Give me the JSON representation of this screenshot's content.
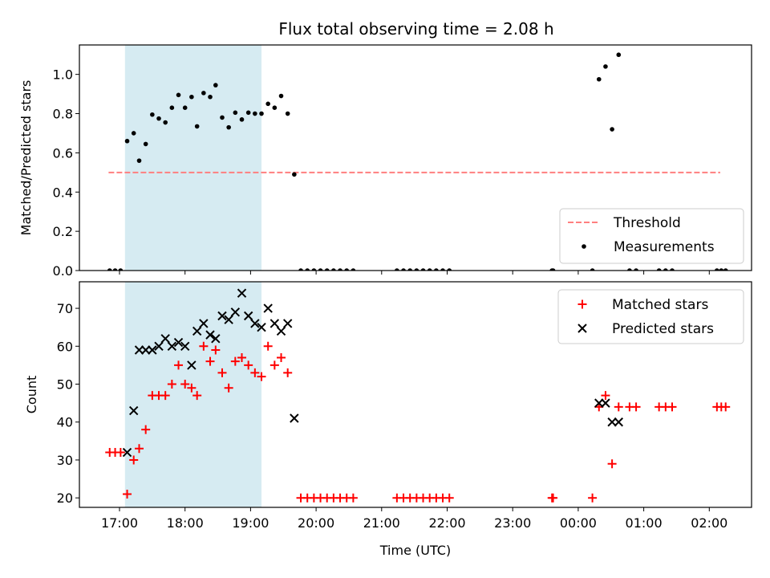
{
  "title": "Flux total observing time = 2.08 h",
  "chart_data": [
    {
      "type": "scatter",
      "ylabel": "Matched/Predicted stars",
      "ylim": [
        0,
        1.15
      ],
      "yticks": [
        "0.0",
        "0.2",
        "0.4",
        "0.6",
        "0.8",
        "1.0"
      ],
      "shaded_span": [
        "17:05",
        "19:10"
      ],
      "threshold": {
        "name": "Threshold",
        "value": 0.5,
        "color": "#ff7f7f",
        "x_range": [
          "16:50",
          "02:10"
        ]
      },
      "measurements": {
        "name": "Measurements",
        "color": "#000000",
        "points": [
          [
            "16:51",
            0
          ],
          [
            "16:56",
            0
          ],
          [
            "17:01",
            0
          ],
          [
            "17:07",
            0.66
          ],
          [
            "17:13",
            0.7
          ],
          [
            "17:18",
            0.56
          ],
          [
            "17:24",
            0.645
          ],
          [
            "17:30",
            0.795
          ],
          [
            "17:36",
            0.775
          ],
          [
            "17:42",
            0.755
          ],
          [
            "17:48",
            0.83
          ],
          [
            "17:54",
            0.895
          ],
          [
            "18:00",
            0.83
          ],
          [
            "18:06",
            0.885
          ],
          [
            "18:11",
            0.735
          ],
          [
            "18:17",
            0.905
          ],
          [
            "18:23",
            0.885
          ],
          [
            "18:28",
            0.945
          ],
          [
            "18:34",
            0.78
          ],
          [
            "18:40",
            0.73
          ],
          [
            "18:46",
            0.805
          ],
          [
            "18:52",
            0.77
          ],
          [
            "18:58",
            0.805
          ],
          [
            "19:04",
            0.8
          ],
          [
            "19:10",
            0.8
          ],
          [
            "19:16",
            0.85
          ],
          [
            "19:22",
            0.83
          ],
          [
            "19:28",
            0.89
          ],
          [
            "19:34",
            0.8
          ],
          [
            "19:40",
            0.49
          ],
          [
            "19:46",
            0
          ],
          [
            "19:52",
            0
          ],
          [
            "19:58",
            0
          ],
          [
            "20:04",
            0
          ],
          [
            "20:10",
            0
          ],
          [
            "20:16",
            0
          ],
          [
            "20:22",
            0
          ],
          [
            "20:28",
            0
          ],
          [
            "20:34",
            0
          ],
          [
            "21:14",
            0
          ],
          [
            "21:20",
            0
          ],
          [
            "21:26",
            0
          ],
          [
            "21:32",
            0
          ],
          [
            "21:38",
            0
          ],
          [
            "21:44",
            0
          ],
          [
            "21:50",
            0
          ],
          [
            "21:56",
            0
          ],
          [
            "22:02",
            0
          ],
          [
            "23:36",
            0
          ],
          [
            "23:37",
            0
          ],
          [
            "00:13",
            0
          ],
          [
            "00:19",
            0.975
          ],
          [
            "00:25",
            1.04
          ],
          [
            "00:31",
            0.72
          ],
          [
            "00:37",
            1.1
          ],
          [
            "00:47",
            0
          ],
          [
            "00:53",
            0
          ],
          [
            "01:14",
            0
          ],
          [
            "01:20",
            0
          ],
          [
            "01:26",
            0
          ],
          [
            "02:07",
            0
          ],
          [
            "02:11",
            0
          ],
          [
            "02:15",
            0
          ]
        ]
      },
      "legend": "bottom-right"
    },
    {
      "type": "scatter",
      "xlabel": "Time (UTC)",
      "ylabel": "Count",
      "ylim": [
        17.5,
        77
      ],
      "yticks": [
        "20",
        "30",
        "40",
        "50",
        "60",
        "70"
      ],
      "xticks": [
        "17:00",
        "18:00",
        "19:00",
        "20:00",
        "21:00",
        "22:00",
        "23:00",
        "00:00",
        "01:00",
        "02:00"
      ],
      "shaded_span": [
        "17:05",
        "19:10"
      ],
      "series": [
        {
          "name": "Matched stars",
          "marker": "plus",
          "color": "#ff0000",
          "points": [
            [
              "16:51",
              32
            ],
            [
              "16:56",
              32
            ],
            [
              "17:01",
              32
            ],
            [
              "17:07",
              21
            ],
            [
              "17:13",
              30
            ],
            [
              "17:18",
              33
            ],
            [
              "17:24",
              38
            ],
            [
              "17:30",
              47
            ],
            [
              "17:36",
              47
            ],
            [
              "17:42",
              47
            ],
            [
              "17:48",
              50
            ],
            [
              "17:54",
              55
            ],
            [
              "18:00",
              50
            ],
            [
              "18:06",
              49
            ],
            [
              "18:11",
              47
            ],
            [
              "18:17",
              60
            ],
            [
              "18:23",
              56
            ],
            [
              "18:28",
              59
            ],
            [
              "18:34",
              53
            ],
            [
              "18:40",
              49
            ],
            [
              "18:46",
              56
            ],
            [
              "18:52",
              57
            ],
            [
              "18:58",
              55
            ],
            [
              "19:04",
              53
            ],
            [
              "19:10",
              52
            ],
            [
              "19:16",
              60
            ],
            [
              "19:22",
              55
            ],
            [
              "19:28",
              57
            ],
            [
              "19:34",
              53
            ],
            [
              "19:46",
              20
            ],
            [
              "19:52",
              20
            ],
            [
              "19:58",
              20
            ],
            [
              "20:04",
              20
            ],
            [
              "20:10",
              20
            ],
            [
              "20:16",
              20
            ],
            [
              "20:22",
              20
            ],
            [
              "20:28",
              20
            ],
            [
              "20:34",
              20
            ],
            [
              "21:14",
              20
            ],
            [
              "21:20",
              20
            ],
            [
              "21:26",
              20
            ],
            [
              "21:32",
              20
            ],
            [
              "21:38",
              20
            ],
            [
              "21:44",
              20
            ],
            [
              "21:50",
              20
            ],
            [
              "21:56",
              20
            ],
            [
              "22:02",
              20
            ],
            [
              "23:36",
              20
            ],
            [
              "23:37",
              20
            ],
            [
              "00:13",
              20
            ],
            [
              "00:19",
              44
            ],
            [
              "00:25",
              47
            ],
            [
              "00:31",
              29
            ],
            [
              "00:37",
              44
            ],
            [
              "00:47",
              44
            ],
            [
              "00:53",
              44
            ],
            [
              "01:14",
              44
            ],
            [
              "01:20",
              44
            ],
            [
              "01:26",
              44
            ],
            [
              "02:07",
              44
            ],
            [
              "02:11",
              44
            ],
            [
              "02:15",
              44
            ]
          ]
        },
        {
          "name": "Predicted stars",
          "marker": "x",
          "color": "#000000",
          "points": [
            [
              "17:07",
              32
            ],
            [
              "17:13",
              43
            ],
            [
              "17:18",
              59
            ],
            [
              "17:24",
              59
            ],
            [
              "17:30",
              59
            ],
            [
              "17:36",
              60
            ],
            [
              "17:42",
              62
            ],
            [
              "17:48",
              60
            ],
            [
              "17:54",
              61
            ],
            [
              "18:00",
              60
            ],
            [
              "18:06",
              55
            ],
            [
              "18:11",
              64
            ],
            [
              "18:17",
              66
            ],
            [
              "18:23",
              63
            ],
            [
              "18:28",
              62
            ],
            [
              "18:34",
              68
            ],
            [
              "18:40",
              67
            ],
            [
              "18:46",
              69
            ],
            [
              "18:52",
              74
            ],
            [
              "18:58",
              68
            ],
            [
              "19:04",
              66
            ],
            [
              "19:10",
              65
            ],
            [
              "19:16",
              70
            ],
            [
              "19:22",
              66
            ],
            [
              "19:28",
              64
            ],
            [
              "19:34",
              66
            ],
            [
              "19:40",
              41
            ],
            [
              "00:19",
              45
            ],
            [
              "00:25",
              45
            ],
            [
              "00:31",
              40
            ],
            [
              "00:37",
              40
            ]
          ]
        }
      ],
      "legend": "top-right"
    }
  ]
}
